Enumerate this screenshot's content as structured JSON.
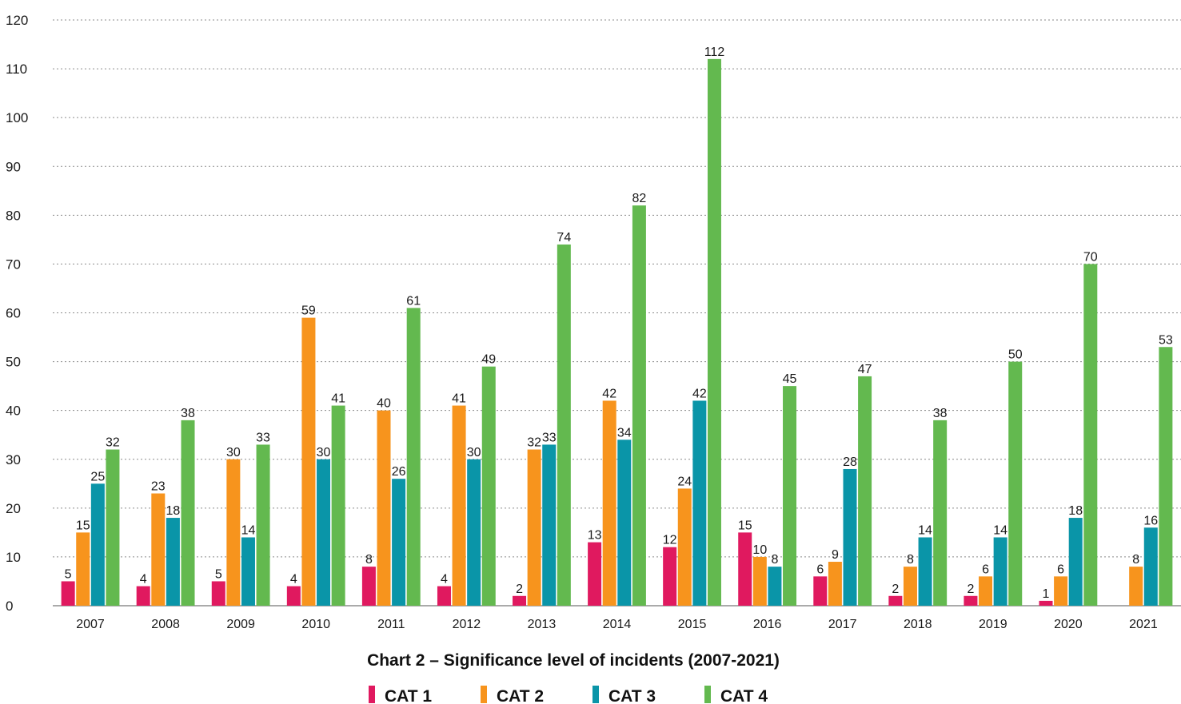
{
  "chart_data": {
    "type": "bar",
    "title": "Chart 2 – Significance level of incidents (2007-2021)",
    "xlabel": "",
    "ylabel": "",
    "ylim": [
      0,
      120
    ],
    "yticks": [
      0,
      10,
      20,
      30,
      40,
      50,
      60,
      70,
      80,
      90,
      100,
      110,
      120
    ],
    "grid": true,
    "legend_position": "bottom",
    "categories": [
      "2007",
      "2008",
      "2009",
      "2010",
      "2011",
      "2012",
      "2013",
      "2014",
      "2015",
      "2016",
      "2017",
      "2018",
      "2019",
      "2020",
      "2021"
    ],
    "series": [
      {
        "name": "CAT 1",
        "color": "#e0195f",
        "values": [
          5,
          4,
          5,
          4,
          8,
          4,
          2,
          13,
          12,
          15,
          6,
          2,
          2,
          1,
          null
        ]
      },
      {
        "name": "CAT 2",
        "color": "#f7941d",
        "values": [
          15,
          23,
          30,
          59,
          40,
          41,
          32,
          42,
          24,
          10,
          9,
          8,
          6,
          6,
          8
        ]
      },
      {
        "name": "CAT 3",
        "color": "#0a95a8",
        "values": [
          25,
          18,
          14,
          30,
          26,
          30,
          33,
          34,
          42,
          8,
          28,
          14,
          14,
          18,
          16
        ]
      },
      {
        "name": "CAT 4",
        "color": "#63b94f",
        "values": [
          32,
          38,
          33,
          41,
          61,
          49,
          74,
          82,
          112,
          45,
          47,
          38,
          50,
          70,
          53
        ]
      }
    ]
  }
}
